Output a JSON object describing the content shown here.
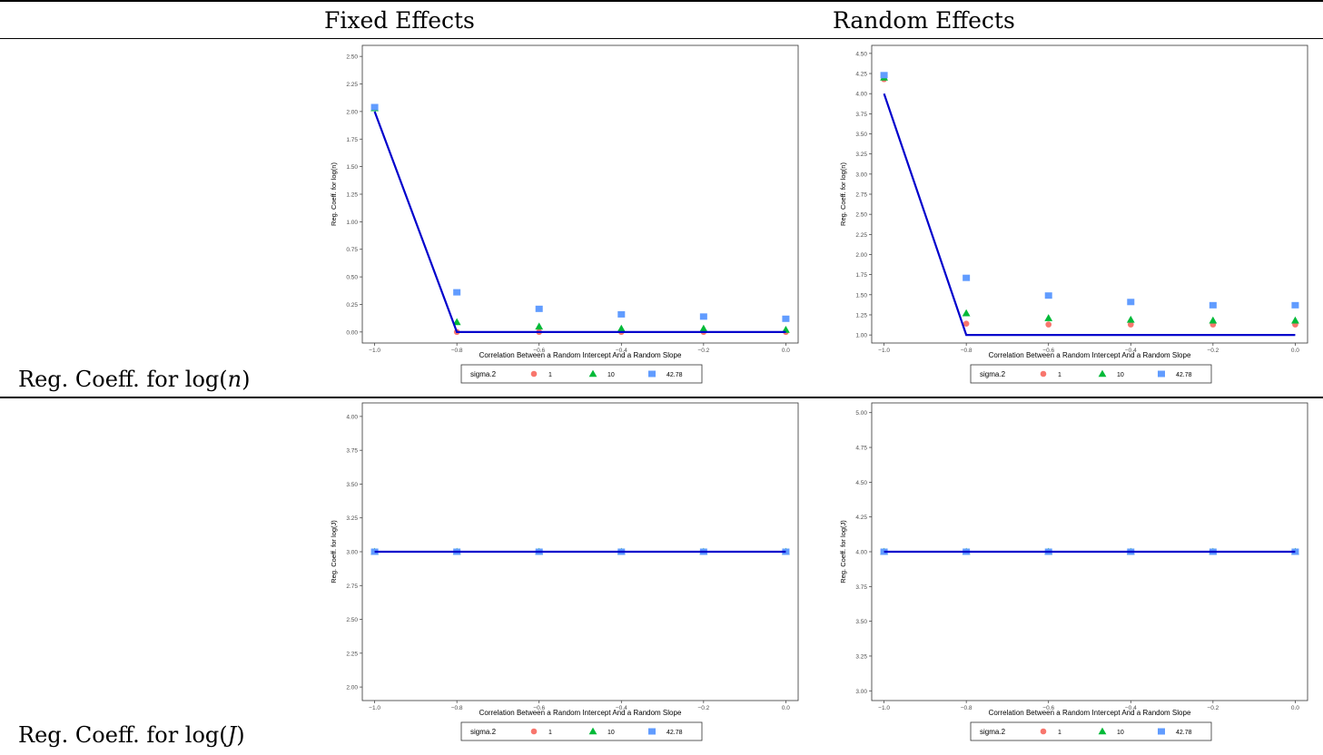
{
  "headers": {
    "fixed": "Fixed Effects",
    "random": "Random Effects"
  },
  "rows": [
    {
      "label_prefix": "Reg. Coeff. for log(",
      "label_var": "n",
      "label_suffix": ")"
    },
    {
      "label_prefix": "Reg. Coeff. for log(",
      "label_var": "J",
      "label_suffix": ")"
    }
  ],
  "colors": {
    "s1": "#f8766d",
    "s10": "#00ba38",
    "s42": "#619cff",
    "truth": "#0000cc"
  },
  "chart_data": [
    {
      "type": "scatter",
      "panel": "fixed-logn",
      "xlabel": "Correlation Between a Random Intercept And a Random Slope",
      "ylabel": "Reg. Coeff. for log(n)",
      "x": [
        -1.0,
        -0.8,
        -0.6,
        -0.4,
        -0.2,
        0.0
      ],
      "xticks": [
        "−1.0",
        "−0.8",
        "−0.6",
        "−0.4",
        "−0.2",
        "0.0"
      ],
      "xlim": [
        -1.03,
        0.03
      ],
      "ylim": [
        -0.1,
        2.6
      ],
      "yticks": [
        "0.00",
        "0.25",
        "0.50",
        "0.75",
        "1.00",
        "1.25",
        "1.50",
        "1.75",
        "2.00",
        "2.25",
        "2.50"
      ],
      "ytick_values": [
        0,
        0.25,
        0.5,
        0.75,
        1,
        1.25,
        1.5,
        1.75,
        2,
        2.25,
        2.5
      ],
      "legend_title": "sigma.2",
      "series": [
        {
          "name": "1",
          "shape": "circle",
          "values": [
            2.03,
            0.0,
            0.0,
            0.0,
            0.0,
            0.0
          ]
        },
        {
          "name": "10",
          "shape": "triangle",
          "values": [
            2.03,
            0.09,
            0.05,
            0.03,
            0.03,
            0.02
          ]
        },
        {
          "name": "42.78",
          "shape": "square",
          "values": [
            2.04,
            0.36,
            0.21,
            0.16,
            0.14,
            0.12
          ]
        }
      ],
      "truth": [
        2.0,
        0.0,
        0.0,
        0.0,
        0.0,
        0.0
      ]
    },
    {
      "type": "scatter",
      "panel": "random-logn",
      "xlabel": "Correlation Between a Random Intercept And a Random Slope",
      "ylabel": "Reg. Coeff. for log(n)",
      "x": [
        -1.0,
        -0.8,
        -0.6,
        -0.4,
        -0.2,
        0.0
      ],
      "xticks": [
        "−1.0",
        "−0.8",
        "−0.6",
        "−0.4",
        "−0.2",
        "0.0"
      ],
      "xlim": [
        -1.03,
        0.03
      ],
      "ylim": [
        0.9,
        4.6
      ],
      "yticks": [
        "1.00",
        "1.25",
        "1.50",
        "1.75",
        "2.00",
        "2.25",
        "2.50",
        "2.75",
        "3.00",
        "3.25",
        "3.50",
        "3.75",
        "4.00",
        "4.25",
        "4.50"
      ],
      "ytick_values": [
        1,
        1.25,
        1.5,
        1.75,
        2,
        2.25,
        2.5,
        2.75,
        3,
        3.25,
        3.5,
        3.75,
        4,
        4.25,
        4.5
      ],
      "legend_title": "sigma.2",
      "series": [
        {
          "name": "1",
          "shape": "circle",
          "values": [
            4.18,
            1.14,
            1.13,
            1.13,
            1.13,
            1.13
          ]
        },
        {
          "name": "10",
          "shape": "triangle",
          "values": [
            4.2,
            1.27,
            1.21,
            1.19,
            1.18,
            1.18
          ]
        },
        {
          "name": "42.78",
          "shape": "square",
          "values": [
            4.23,
            1.71,
            1.49,
            1.41,
            1.37,
            1.37
          ]
        }
      ],
      "truth": [
        4.0,
        1.0,
        1.0,
        1.0,
        1.0,
        1.0
      ]
    },
    {
      "type": "scatter",
      "panel": "fixed-logJ",
      "xlabel": "Correlation Between a Random Intercept And a Random Slope",
      "ylabel": "Reg. Coeff. for log(J)",
      "x": [
        -1.0,
        -0.8,
        -0.6,
        -0.4,
        -0.2,
        0.0
      ],
      "xticks": [
        "−1.0",
        "−0.8",
        "−0.6",
        "−0.4",
        "−0.2",
        "0.0"
      ],
      "xlim": [
        -1.03,
        0.03
      ],
      "ylim": [
        1.9,
        4.1
      ],
      "yticks": [
        "2.00",
        "2.25",
        "2.50",
        "2.75",
        "3.00",
        "3.25",
        "3.50",
        "3.75",
        "4.00"
      ],
      "ytick_values": [
        2,
        2.25,
        2.5,
        2.75,
        3,
        3.25,
        3.5,
        3.75,
        4
      ],
      "legend_title": "sigma.2",
      "series": [
        {
          "name": "1",
          "shape": "circle",
          "values": [
            3.0,
            3.0,
            3.0,
            3.0,
            3.0,
            3.0
          ]
        },
        {
          "name": "10",
          "shape": "triangle",
          "values": [
            3.0,
            3.0,
            3.0,
            3.0,
            3.0,
            3.0
          ]
        },
        {
          "name": "42.78",
          "shape": "square",
          "values": [
            3.0,
            3.0,
            3.0,
            3.0,
            3.0,
            3.0
          ]
        }
      ],
      "truth": [
        3.0,
        3.0,
        3.0,
        3.0,
        3.0,
        3.0
      ]
    },
    {
      "type": "scatter",
      "panel": "random-logJ",
      "xlabel": "Correlation Between a Random Intercept And a Random Slope",
      "ylabel": "Reg. Coeff. for log(J)",
      "x": [
        -1.0,
        -0.8,
        -0.6,
        -0.4,
        -0.2,
        0.0
      ],
      "xticks": [
        "−1.0",
        "−0.8",
        "−0.6",
        "−0.4",
        "−0.2",
        "0.0"
      ],
      "xlim": [
        -1.03,
        0.03
      ],
      "ylim": [
        2.93,
        5.07
      ],
      "yticks": [
        "3.00",
        "3.25",
        "3.50",
        "3.75",
        "4.00",
        "4.25",
        "4.50",
        "4.75",
        "5.00"
      ],
      "ytick_values": [
        3,
        3.25,
        3.5,
        3.75,
        4,
        4.25,
        4.5,
        4.75,
        5
      ],
      "legend_title": "sigma.2",
      "series": [
        {
          "name": "1",
          "shape": "circle",
          "values": [
            4.0,
            4.0,
            4.0,
            4.0,
            4.0,
            4.0
          ]
        },
        {
          "name": "10",
          "shape": "triangle",
          "values": [
            4.0,
            4.0,
            4.0,
            4.0,
            4.0,
            4.0
          ]
        },
        {
          "name": "42.78",
          "shape": "square",
          "values": [
            4.0,
            4.0,
            4.0,
            4.0,
            4.0,
            4.0
          ]
        }
      ],
      "truth": [
        4.0,
        4.0,
        4.0,
        4.0,
        4.0,
        4.0
      ]
    }
  ]
}
